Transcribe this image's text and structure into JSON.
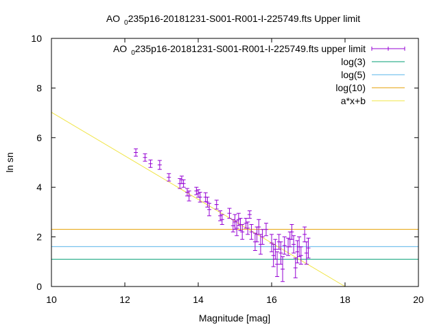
{
  "chart_data": {
    "type": "scatter",
    "title_prefix": "AO",
    "title_subscript": "0",
    "title_suffix": "235p16-20181231-S001-R001-I-225749.fts Upper limit",
    "xlabel": "Magnitude [mag]",
    "ylabel": "ln sn",
    "xlim": [
      10,
      20
    ],
    "ylim": [
      0,
      10
    ],
    "grid": false,
    "legend_placement": "top-right",
    "x_ticks": [
      "10",
      "12",
      "14",
      "16",
      "18",
      "20"
    ],
    "y_ticks": [
      "0",
      "2",
      "4",
      "6",
      "8",
      "10"
    ],
    "legend": [
      {
        "prefix": "AO",
        "subscript": "0",
        "suffix": "235p16-20181231-S001-R001-I-225749.fts upper limit",
        "style": "errorbar"
      },
      {
        "label": "log(3)",
        "style": "line"
      },
      {
        "label": "log(5)",
        "style": "line"
      },
      {
        "label": "log(10)",
        "style": "line"
      },
      {
        "label": "a*x+b",
        "style": "line"
      }
    ],
    "colors": {
      "points": "#9400d3",
      "log3": "#009e73",
      "log5": "#56b4e9",
      "log10": "#e69f00",
      "fit": "#f0e442"
    },
    "hlines": {
      "log3": 1.0986,
      "log5": 1.6094,
      "log10": 2.3026
    },
    "fit": {
      "slope": -0.8778,
      "intercept": 15.8
    },
    "series": [
      {
        "points": [
          [
            12.3,
            5.4,
            0.15
          ],
          [
            12.55,
            5.2,
            0.15
          ],
          [
            12.7,
            4.95,
            0.15
          ],
          [
            12.95,
            4.9,
            0.18
          ],
          [
            13.2,
            4.4,
            0.15
          ],
          [
            13.5,
            4.15,
            0.2
          ],
          [
            13.55,
            4.3,
            0.15
          ],
          [
            13.6,
            4.15,
            0.15
          ],
          [
            13.7,
            3.8,
            0.15
          ],
          [
            13.75,
            3.65,
            0.2
          ],
          [
            13.95,
            3.85,
            0.15
          ],
          [
            14.0,
            3.75,
            0.15
          ],
          [
            14.05,
            3.6,
            0.2
          ],
          [
            14.2,
            3.6,
            0.18
          ],
          [
            14.25,
            3.4,
            0.2
          ],
          [
            14.3,
            3.1,
            0.25
          ],
          [
            14.5,
            3.3,
            0.18
          ],
          [
            14.6,
            2.85,
            0.2
          ],
          [
            14.65,
            2.7,
            0.2
          ],
          [
            14.85,
            2.95,
            0.2
          ],
          [
            14.95,
            2.45,
            0.25
          ],
          [
            15.0,
            2.6,
            0.3
          ],
          [
            15.05,
            2.35,
            0.3
          ],
          [
            15.1,
            2.7,
            0.25
          ],
          [
            15.15,
            2.5,
            0.25
          ],
          [
            15.2,
            2.2,
            0.3
          ],
          [
            15.3,
            2.55,
            0.2
          ],
          [
            15.35,
            2.35,
            0.25
          ],
          [
            15.4,
            2.9,
            0.15
          ],
          [
            15.45,
            2.2,
            0.3
          ],
          [
            15.55,
            1.8,
            0.35
          ],
          [
            15.6,
            2.1,
            0.3
          ],
          [
            15.65,
            2.4,
            0.3
          ],
          [
            15.7,
            1.7,
            0.4
          ],
          [
            15.75,
            2.0,
            0.3
          ],
          [
            15.85,
            2.3,
            0.25
          ],
          [
            16.0,
            1.75,
            0.35
          ],
          [
            16.05,
            1.25,
            0.45
          ],
          [
            16.1,
            1.5,
            0.4
          ],
          [
            16.15,
            0.9,
            0.5
          ],
          [
            16.2,
            1.8,
            0.3
          ],
          [
            16.25,
            1.35,
            0.45
          ],
          [
            16.3,
            0.7,
            0.5
          ],
          [
            16.35,
            1.65,
            0.35
          ],
          [
            16.45,
            1.6,
            0.35
          ],
          [
            16.5,
            1.9,
            0.3
          ],
          [
            16.55,
            2.2,
            0.3
          ],
          [
            16.6,
            1.7,
            0.35
          ],
          [
            16.65,
            0.75,
            0.4
          ],
          [
            16.7,
            1.4,
            0.45
          ],
          [
            16.75,
            1.6,
            0.4
          ],
          [
            16.8,
            1.25,
            0.35
          ],
          [
            16.9,
            2.1,
            0.3
          ],
          [
            16.95,
            1.35,
            0.45
          ],
          [
            17.0,
            1.55,
            0.4
          ]
        ]
      }
    ]
  }
}
